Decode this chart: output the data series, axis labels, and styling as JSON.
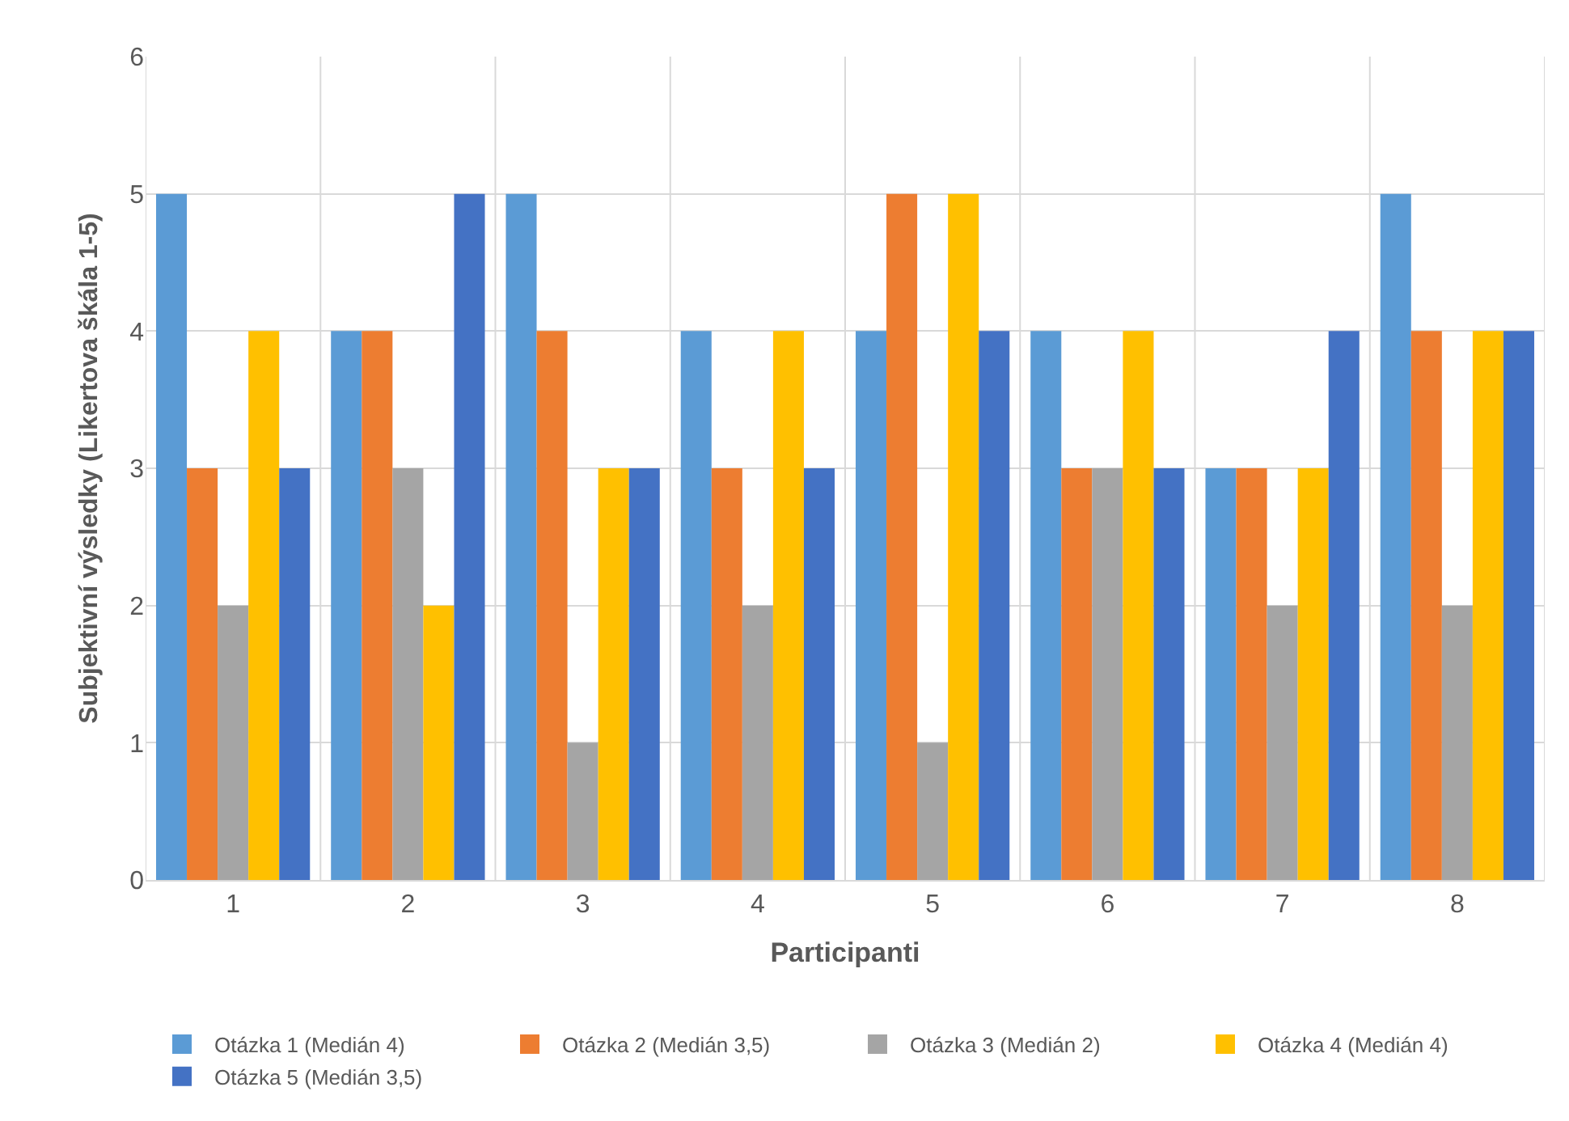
{
  "chart_data": {
    "type": "bar",
    "xlabel": "Participanti",
    "ylabel": "Subjektivní výsledky (Likertova škála 1-5)",
    "categories": [
      "1",
      "2",
      "3",
      "4",
      "5",
      "6",
      "7",
      "8"
    ],
    "series": [
      {
        "name": "Otázka 1 (Medián 4)",
        "color": "#5b9bd5",
        "values": [
          5,
          4,
          5,
          4,
          4,
          4,
          3,
          5
        ]
      },
      {
        "name": "Otázka 2 (Medián 3,5)",
        "color": "#ed7d31",
        "values": [
          3,
          4,
          4,
          3,
          5,
          3,
          3,
          4
        ]
      },
      {
        "name": "Otázka 3 (Medián 2)",
        "color": "#a5a5a5",
        "values": [
          2,
          3,
          1,
          2,
          1,
          3,
          2,
          2
        ]
      },
      {
        "name": "Otázka 4 (Medián 4)",
        "color": "#ffc000",
        "values": [
          4,
          2,
          3,
          4,
          5,
          4,
          3,
          4
        ]
      },
      {
        "name": "Otázka 5 (Medián 3,5)",
        "color": "#4472c4",
        "values": [
          3,
          5,
          3,
          3,
          4,
          3,
          4,
          4
        ]
      }
    ],
    "ylim": [
      0,
      6
    ],
    "yticks": [
      0,
      1,
      2,
      3,
      4,
      5,
      6
    ],
    "grid": true,
    "legend": "bottom"
  }
}
